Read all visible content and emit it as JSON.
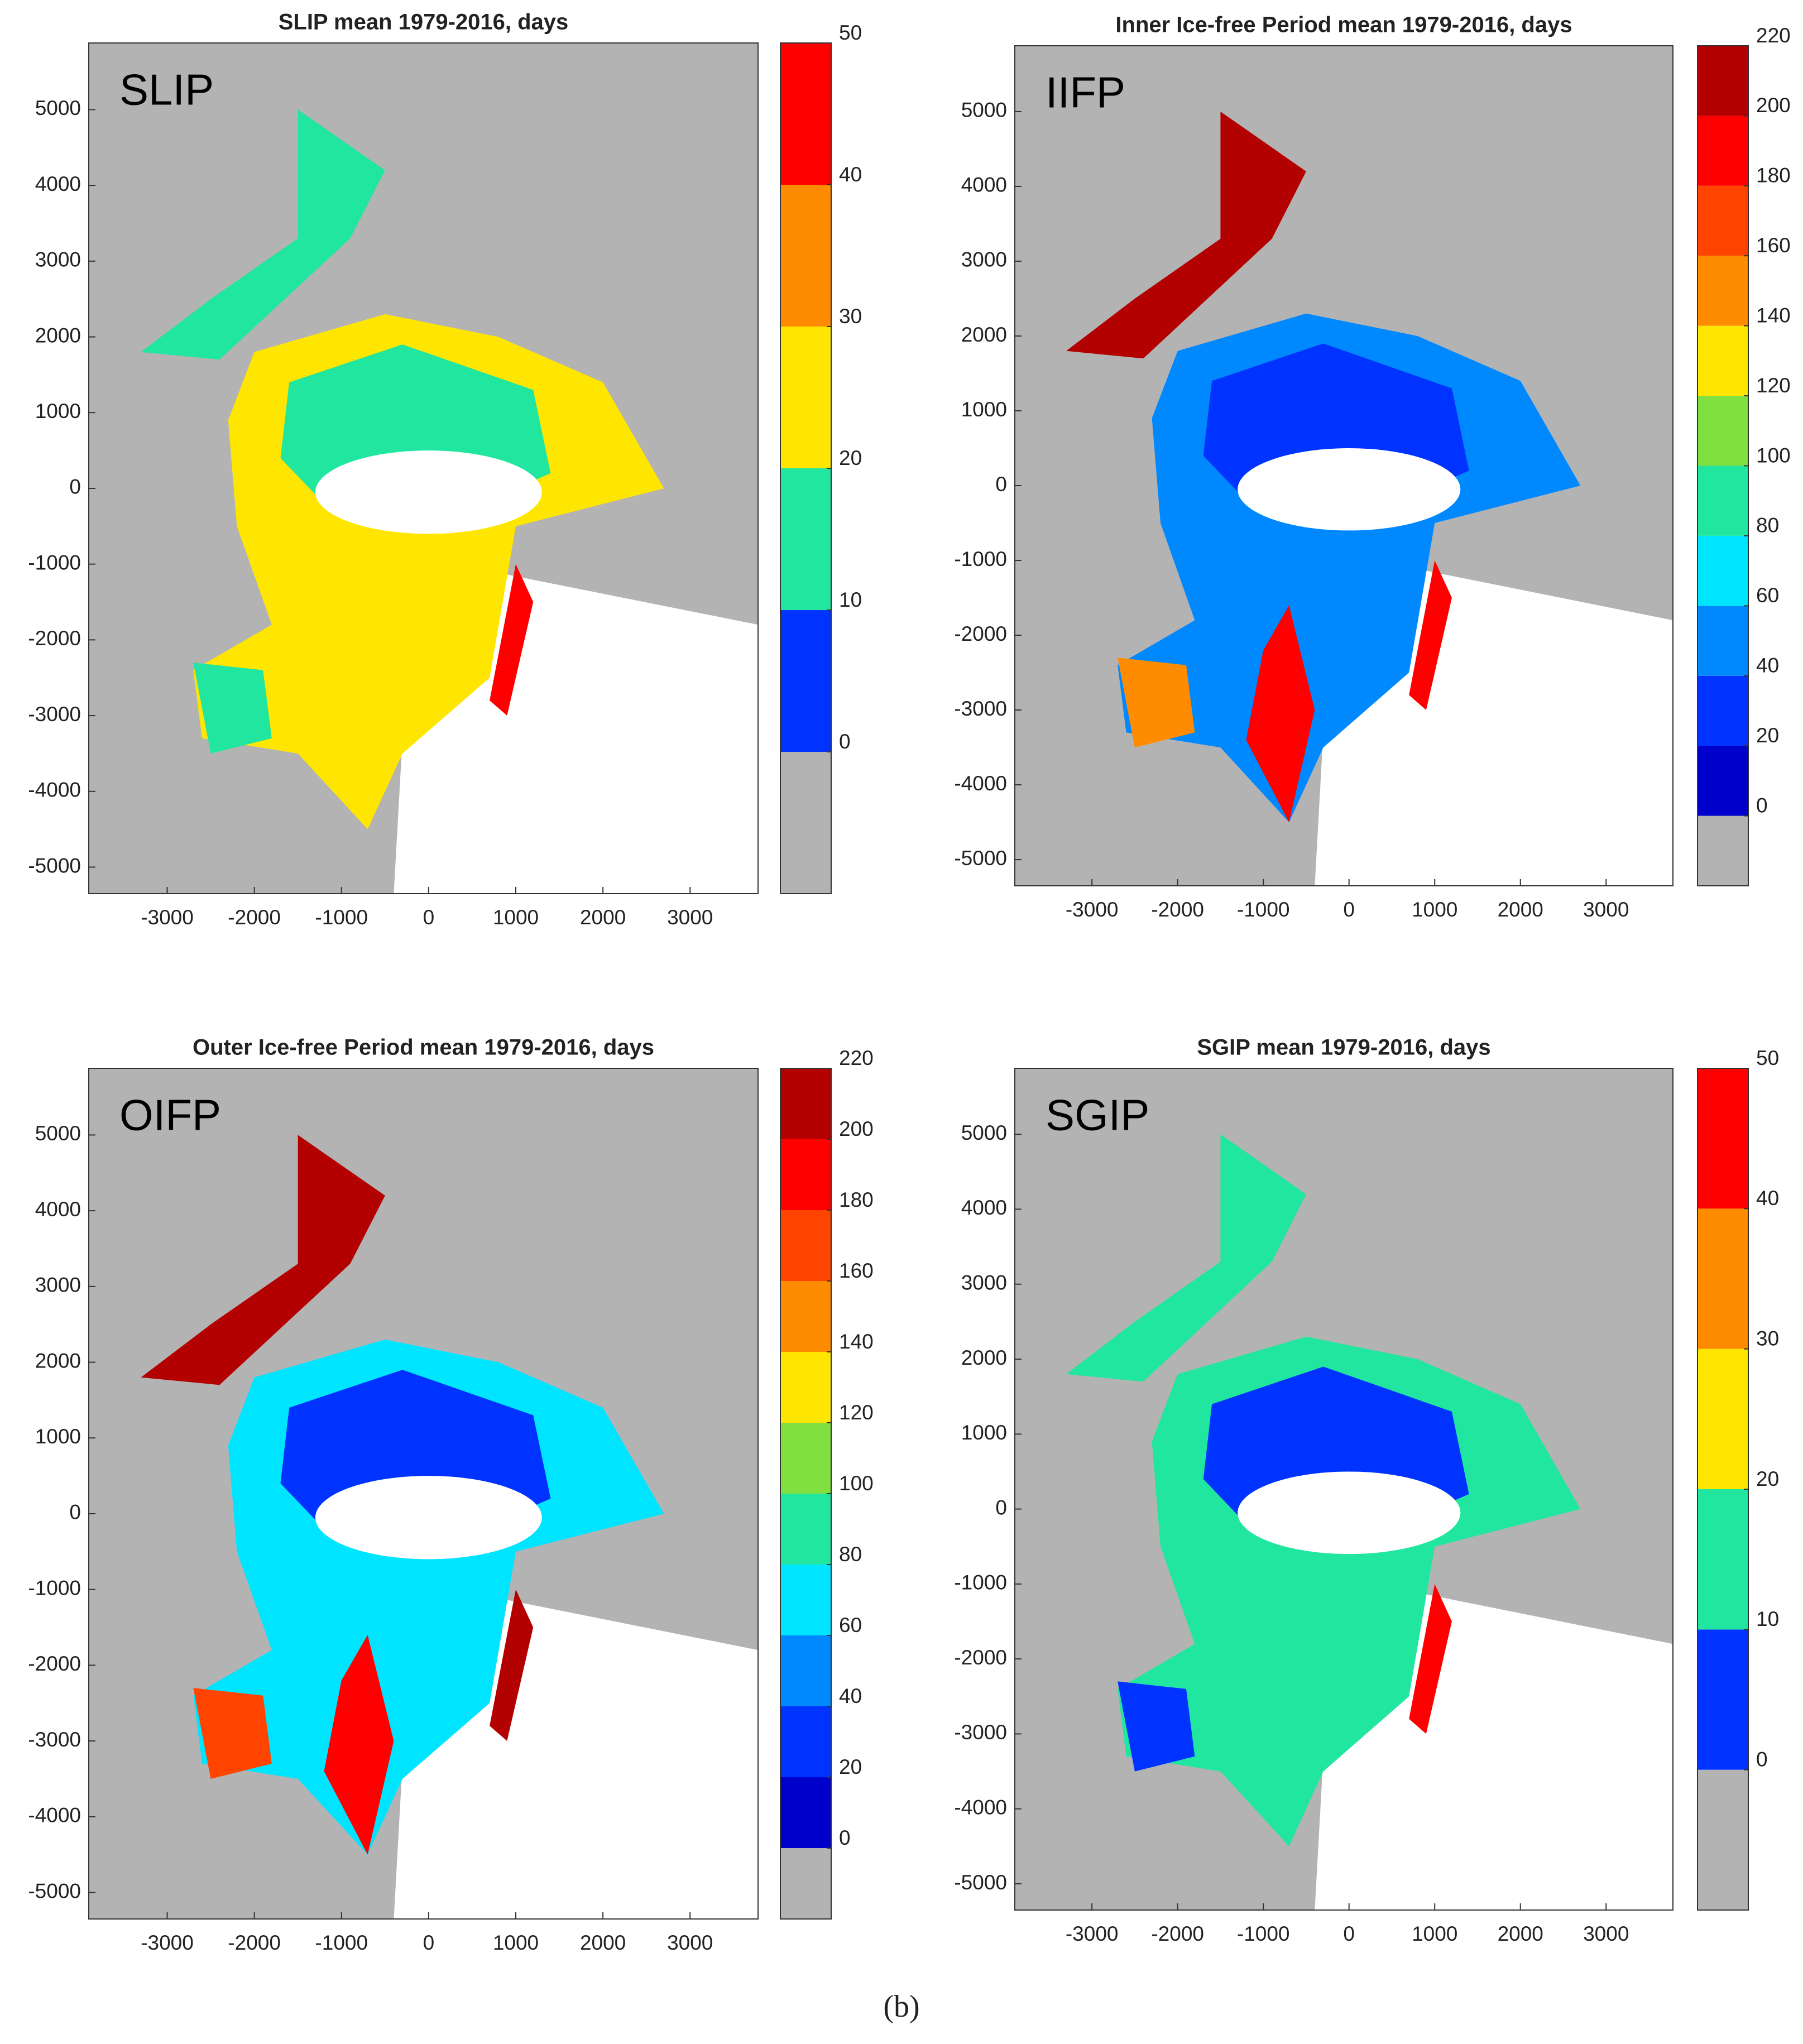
{
  "chart_data": [
    {
      "type": "map",
      "title": "SLIP mean 1979-2016, days",
      "label": "SLIP",
      "xlim": [
        -3900,
        3780
      ],
      "ylim": [
        -5350,
        5880
      ],
      "xticks": [
        -3000,
        -2000,
        -1000,
        0,
        1000,
        2000,
        3000
      ],
      "yticks": [
        -5000,
        -4000,
        -3000,
        -2000,
        -1000,
        0,
        1000,
        2000,
        3000,
        4000,
        5000
      ],
      "colorbar": {
        "lim": [
          -10,
          50
        ],
        "ticks": [
          0,
          10,
          20,
          30,
          40,
          50
        ],
        "colors": [
          "#b3b3b3",
          "#0033ff",
          "#20e6a0",
          "#ffe600",
          "#ff8c00",
          "#ff0000"
        ]
      }
    },
    {
      "type": "map",
      "title": "Inner Ice-free Period mean 1979-2016, days",
      "label": "IIFP",
      "xlim": [
        -3900,
        3780
      ],
      "ylim": [
        -5350,
        5880
      ],
      "xticks": [
        -3000,
        -2000,
        -1000,
        0,
        1000,
        2000,
        3000
      ],
      "yticks": [
        -5000,
        -4000,
        -3000,
        -2000,
        -1000,
        0,
        1000,
        2000,
        3000,
        4000,
        5000
      ],
      "colorbar": {
        "lim": [
          -20,
          220
        ],
        "ticks": [
          0,
          20,
          40,
          60,
          80,
          100,
          120,
          140,
          160,
          180,
          200,
          220
        ],
        "colors": [
          "#b3b3b3",
          "#0000cc",
          "#0033ff",
          "#0088ff",
          "#00e5ff",
          "#20e6a0",
          "#80e040",
          "#ffe600",
          "#ff8c00",
          "#ff4400",
          "#ff0000",
          "#b30000"
        ]
      }
    },
    {
      "type": "map",
      "title": "Outer Ice-free Period mean 1979-2016, days",
      "label": "OIFP",
      "xlim": [
        -3900,
        3780
      ],
      "ylim": [
        -5350,
        5880
      ],
      "xticks": [
        -3000,
        -2000,
        -1000,
        0,
        1000,
        2000,
        3000
      ],
      "yticks": [
        -5000,
        -4000,
        -3000,
        -2000,
        -1000,
        0,
        1000,
        2000,
        3000,
        4000,
        5000
      ],
      "colorbar": {
        "lim": [
          -20,
          220
        ],
        "ticks": [
          0,
          20,
          40,
          60,
          80,
          100,
          120,
          140,
          160,
          180,
          200,
          220
        ],
        "colors": [
          "#b3b3b3",
          "#0000cc",
          "#0033ff",
          "#0088ff",
          "#00e5ff",
          "#20e6a0",
          "#80e040",
          "#ffe600",
          "#ff8c00",
          "#ff4400",
          "#ff0000",
          "#b30000"
        ]
      }
    },
    {
      "type": "map",
      "title": "SGIP mean 1979-2016, days",
      "label": "SGIP",
      "xlim": [
        -3900,
        3780
      ],
      "ylim": [
        -5350,
        5880
      ],
      "xticks": [
        -3000,
        -2000,
        -1000,
        0,
        1000,
        2000,
        3000
      ],
      "yticks": [
        -5000,
        -4000,
        -3000,
        -2000,
        -1000,
        0,
        1000,
        2000,
        3000,
        4000,
        5000
      ],
      "colorbar": {
        "lim": [
          -10,
          50
        ],
        "ticks": [
          0,
          10,
          20,
          30,
          40,
          50
        ],
        "colors": [
          "#b3b3b3",
          "#0033ff",
          "#20e6a0",
          "#ffe600",
          "#ff8c00",
          "#ff0000"
        ]
      }
    }
  ],
  "caption": "(b)"
}
